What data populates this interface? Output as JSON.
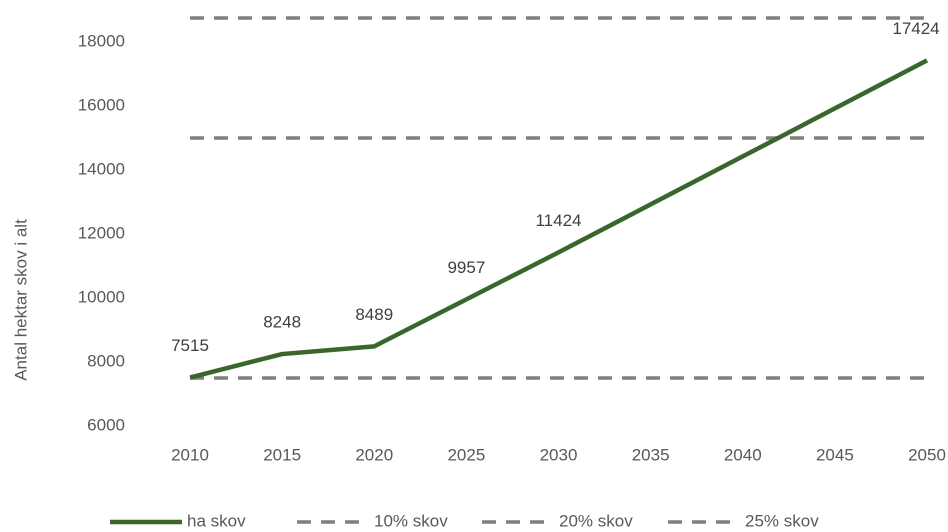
{
  "chart_data": {
    "type": "line",
    "y_label": "Antal hektar skov i alt",
    "categories": [
      "2010",
      "2015",
      "2020",
      "2025",
      "2030",
      "2035",
      "2040",
      "2045",
      "2050"
    ],
    "series": [
      {
        "name": "ha skov",
        "color": "#38662b",
        "dash": false,
        "values": [
          7515,
          8248,
          8489,
          9957,
          11424,
          12924,
          14424,
          15924,
          17424
        ],
        "value_labels": [
          "7515",
          "8248",
          "8489",
          "9957",
          "11424",
          null,
          null,
          null,
          "17424"
        ]
      },
      {
        "name": "10% skov",
        "color": "#7f7f7f",
        "dash": true,
        "values": [
          7500,
          7500,
          7500,
          7500,
          7500,
          7500,
          7500,
          7500,
          7500
        ]
      },
      {
        "name": "20% skov",
        "color": "#7f7f7f",
        "dash": true,
        "values": [
          15000,
          15000,
          15000,
          15000,
          15000,
          15000,
          15000,
          15000,
          15000
        ]
      },
      {
        "name": "25% skov",
        "color": "#7f7f7f",
        "dash": true,
        "values": [
          18750,
          18750,
          18750,
          18750,
          18750,
          18750,
          18750,
          18750,
          18750
        ]
      }
    ],
    "ylim": [
      6000,
      19000
    ],
    "yticks": [
      6000,
      8000,
      10000,
      12000,
      14000,
      16000,
      18000
    ],
    "grid": false,
    "legend": "bottom"
  }
}
